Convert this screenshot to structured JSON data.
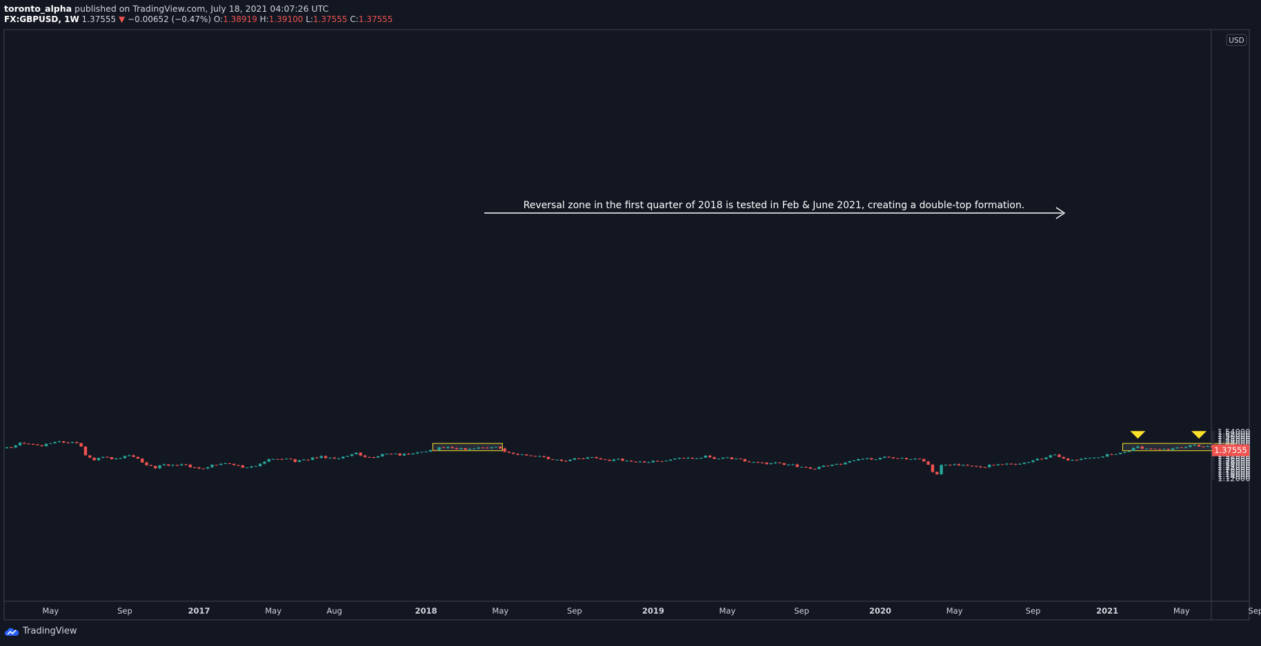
{
  "header": {
    "author": "toronto_alpha",
    "published": " published on TradingView.com, July 18, 2021 04:07:26 UTC"
  },
  "symbol": {
    "name": "FX:GBPUSD, 1W",
    "last": "1.37555",
    "arrow": "▼",
    "change": "−0.00652 (−0.47%)",
    "o_label": "O:",
    "o_value": "1.38919",
    "h_label": "H:",
    "h_value": "1.39100",
    "l_label": "L:",
    "l_value": "1.37555",
    "c_label": "C:",
    "c_value": "1.37555"
  },
  "currency_badge": "USD",
  "price_tag": "1.37555",
  "annotation": "Reversal zone in the first quarter of 2018 is tested in Feb & June 2021, creating a double-top formation.",
  "footer": {
    "brand": "TradingView"
  },
  "colors": {
    "background": "#131722",
    "up": "#26a69a",
    "down": "#ef5350",
    "zone": "#fbe12a",
    "text": "#d1d4dc"
  },
  "chart_data": {
    "type": "candlestick",
    "symbol": "FX:GBPUSD",
    "interval": "1W",
    "y_axis": {
      "range": [
        1.1,
        1.56
      ],
      "ticks": [
        "1.12000",
        "1.14000",
        "1.16000",
        "1.18000",
        "1.20000",
        "1.22000",
        "1.24000",
        "1.26000",
        "1.28000",
        "1.30000",
        "1.32000",
        "1.34000",
        "1.36000",
        "1.38000",
        "1.40000",
        "1.42000",
        "1.44000",
        "1.46000",
        "1.48000",
        "1.50000",
        "1.52000",
        "1.54000"
      ]
    },
    "x_axis": {
      "ticks": [
        {
          "label": "May",
          "week": 10
        },
        {
          "label": "Sep",
          "week": 27
        },
        {
          "label": "2017",
          "week": 44
        },
        {
          "label": "May",
          "week": 61
        },
        {
          "label": "Aug",
          "week": 75
        },
        {
          "label": "2018",
          "week": 96
        },
        {
          "label": "May",
          "week": 113
        },
        {
          "label": "Sep",
          "week": 130
        },
        {
          "label": "2019",
          "week": 148
        },
        {
          "label": "May",
          "week": 165
        },
        {
          "label": "Sep",
          "week": 182
        },
        {
          "label": "2020",
          "week": 200
        },
        {
          "label": "May",
          "week": 217
        },
        {
          "label": "Sep",
          "week": 235
        },
        {
          "label": "2021",
          "week": 252
        },
        {
          "label": "May",
          "week": 269
        },
        {
          "label": "Sep",
          "week": 286
        }
      ]
    },
    "reversal_zones": [
      {
        "week_start": 98,
        "week_end": 113,
        "price_low": 1.372,
        "price_high": 1.438
      },
      {
        "week_start": 256,
        "week_end": 281,
        "price_low": 1.372,
        "price_high": 1.438
      }
    ],
    "double_top_markers": [
      {
        "week": 259,
        "price": 1.425
      },
      {
        "week": 273,
        "price": 1.425
      }
    ],
    "anchors": [
      [
        0,
        1.395
      ],
      [
        3,
        1.438
      ],
      [
        8,
        1.418
      ],
      [
        11,
        1.455
      ],
      [
        13,
        1.443
      ],
      [
        15,
        1.455
      ],
      [
        16,
        1.44
      ],
      [
        17,
        1.415
      ],
      [
        18,
        1.33
      ],
      [
        19,
        1.31
      ],
      [
        20,
        1.285
      ],
      [
        22,
        1.32
      ],
      [
        24,
        1.3
      ],
      [
        28,
        1.325
      ],
      [
        30,
        1.298
      ],
      [
        32,
        1.245
      ],
      [
        34,
        1.22
      ],
      [
        36,
        1.25
      ],
      [
        38,
        1.238
      ],
      [
        40,
        1.255
      ],
      [
        42,
        1.23
      ],
      [
        45,
        1.205
      ],
      [
        47,
        1.248
      ],
      [
        50,
        1.255
      ],
      [
        53,
        1.235
      ],
      [
        55,
        1.215
      ],
      [
        58,
        1.248
      ],
      [
        60,
        1.29
      ],
      [
        62,
        1.3
      ],
      [
        65,
        1.293
      ],
      [
        66,
        1.275
      ],
      [
        68,
        1.285
      ],
      [
        70,
        1.31
      ],
      [
        72,
        1.318
      ],
      [
        74,
        1.302
      ],
      [
        76,
        1.31
      ],
      [
        78,
        1.33
      ],
      [
        80,
        1.348
      ],
      [
        82,
        1.318
      ],
      [
        84,
        1.31
      ],
      [
        86,
        1.335
      ],
      [
        88,
        1.345
      ],
      [
        90,
        1.335
      ],
      [
        92,
        1.34
      ],
      [
        94,
        1.35
      ],
      [
        96,
        1.37
      ],
      [
        98,
        1.383
      ],
      [
        99,
        1.4
      ],
      [
        101,
        1.405
      ],
      [
        103,
        1.393
      ],
      [
        105,
        1.383
      ],
      [
        106,
        1.393
      ],
      [
        108,
        1.403
      ],
      [
        110,
        1.393
      ],
      [
        112,
        1.413
      ],
      [
        113,
        1.395
      ],
      [
        114,
        1.365
      ],
      [
        116,
        1.348
      ],
      [
        118,
        1.333
      ],
      [
        120,
        1.328
      ],
      [
        122,
        1.315
      ],
      [
        124,
        1.3
      ],
      [
        126,
        1.29
      ],
      [
        128,
        1.28
      ],
      [
        130,
        1.298
      ],
      [
        132,
        1.305
      ],
      [
        134,
        1.31
      ],
      [
        136,
        1.3
      ],
      [
        138,
        1.28
      ],
      [
        140,
        1.292
      ],
      [
        142,
        1.278
      ],
      [
        144,
        1.272
      ],
      [
        146,
        1.262
      ],
      [
        148,
        1.278
      ],
      [
        150,
        1.283
      ],
      [
        152,
        1.298
      ],
      [
        154,
        1.31
      ],
      [
        156,
        1.303
      ],
      [
        158,
        1.31
      ],
      [
        160,
        1.32
      ],
      [
        162,
        1.305
      ],
      [
        164,
        1.31
      ],
      [
        166,
        1.3
      ],
      [
        168,
        1.29
      ],
      [
        170,
        1.27
      ],
      [
        172,
        1.265
      ],
      [
        174,
        1.258
      ],
      [
        176,
        1.265
      ],
      [
        178,
        1.25
      ],
      [
        180,
        1.24
      ],
      [
        182,
        1.22
      ],
      [
        184,
        1.208
      ],
      [
        186,
        1.22
      ],
      [
        188,
        1.24
      ],
      [
        190,
        1.25
      ],
      [
        192,
        1.26
      ],
      [
        194,
        1.285
      ],
      [
        196,
        1.3
      ],
      [
        198,
        1.295
      ],
      [
        200,
        1.305
      ],
      [
        201,
        1.32
      ],
      [
        203,
        1.31
      ],
      [
        205,
        1.305
      ],
      [
        207,
        1.3
      ],
      [
        209,
        1.29
      ],
      [
        210,
        1.28
      ],
      [
        211,
        1.25
      ],
      [
        212,
        1.18
      ],
      [
        213,
        1.165
      ],
      [
        214,
        1.24
      ],
      [
        215,
        1.248
      ],
      [
        217,
        1.245
      ],
      [
        219,
        1.248
      ],
      [
        221,
        1.238
      ],
      [
        222,
        1.225
      ],
      [
        223,
        1.22
      ],
      [
        225,
        1.238
      ],
      [
        227,
        1.25
      ],
      [
        229,
        1.248
      ],
      [
        231,
        1.245
      ],
      [
        233,
        1.26
      ],
      [
        235,
        1.285
      ],
      [
        237,
        1.3
      ],
      [
        239,
        1.325
      ],
      [
        240,
        1.33
      ],
      [
        241,
        1.31
      ],
      [
        243,
        1.285
      ],
      [
        245,
        1.29
      ],
      [
        247,
        1.3
      ],
      [
        249,
        1.31
      ],
      [
        251,
        1.325
      ],
      [
        253,
        1.34
      ],
      [
        255,
        1.355
      ],
      [
        257,
        1.368
      ],
      [
        258,
        1.395
      ],
      [
        259,
        1.405
      ],
      [
        260,
        1.39
      ],
      [
        262,
        1.385
      ],
      [
        264,
        1.38
      ],
      [
        266,
        1.385
      ],
      [
        268,
        1.395
      ],
      [
        270,
        1.41
      ],
      [
        272,
        1.418
      ],
      [
        273,
        1.415
      ],
      [
        275,
        1.41
      ],
      [
        277,
        1.385
      ],
      [
        279,
        1.388
      ],
      [
        281,
        1.376
      ]
    ]
  }
}
